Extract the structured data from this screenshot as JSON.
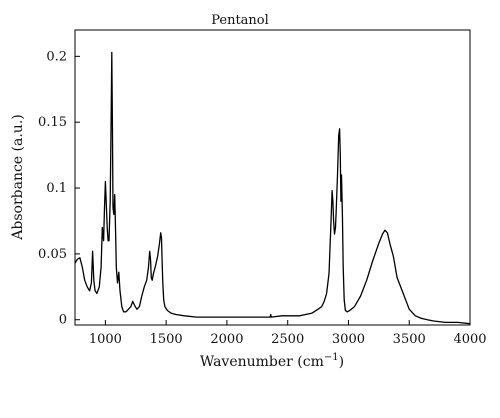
{
  "chart_data": {
    "type": "line",
    "title": "Pentanol",
    "xlabel": "Wavenumber (cm",
    "xlabel_superscript": "−1",
    "xlabel_suffix": ")",
    "ylabel": "Absorbance (a.u.)",
    "xlim": [
      750,
      4000
    ],
    "ylim": [
      -0.004,
      0.22
    ],
    "grid": false,
    "x_ticks": [
      {
        "value": 1000,
        "label": "1000"
      },
      {
        "value": 1500,
        "label": "1500"
      },
      {
        "value": 2000,
        "label": "2000"
      },
      {
        "value": 2500,
        "label": "2500"
      },
      {
        "value": 3000,
        "label": "3000"
      },
      {
        "value": 3500,
        "label": "3500"
      },
      {
        "value": 4000,
        "label": "4000"
      }
    ],
    "y_ticks": [
      {
        "value": 0,
        "label": "0"
      },
      {
        "value": 0.05,
        "label": "0.05"
      },
      {
        "value": 0.1,
        "label": "0.1"
      },
      {
        "value": 0.15,
        "label": "0.15"
      },
      {
        "value": 0.2,
        "label": "0.2"
      }
    ],
    "line_color": "#000000",
    "series": [
      {
        "x": [
          750,
          770,
          790,
          810,
          830,
          850,
          870,
          885,
          895,
          905,
          915,
          930,
          950,
          965,
          975,
          985,
          993,
          1000,
          1007,
          1015,
          1022,
          1030,
          1040,
          1047,
          1053,
          1058,
          1063,
          1070,
          1077,
          1083,
          1090,
          1100,
          1110,
          1120,
          1135,
          1150,
          1170,
          1190,
          1210,
          1225,
          1235,
          1245,
          1260,
          1280,
          1300,
          1320,
          1340,
          1355,
          1365,
          1372,
          1378,
          1385,
          1395,
          1410,
          1430,
          1445,
          1455,
          1462,
          1467,
          1472,
          1480,
          1490,
          1510,
          1540,
          1580,
          1650,
          1750,
          1850,
          2000,
          2150,
          2300,
          2355,
          2360,
          2365,
          2450,
          2600,
          2700,
          2750,
          2780,
          2800,
          2820,
          2840,
          2855,
          2865,
          2872,
          2878,
          2885,
          2893,
          2900,
          2910,
          2920,
          2927,
          2933,
          2938,
          2943,
          2950,
          2957,
          2965,
          2975,
          2990,
          3010,
          3050,
          3100,
          3150,
          3200,
          3250,
          3280,
          3300,
          3320,
          3340,
          3370,
          3400,
          3450,
          3500,
          3550,
          3600,
          3650,
          3700,
          3800,
          3900,
          4000
        ],
        "y": [
          0.043,
          0.046,
          0.047,
          0.04,
          0.03,
          0.025,
          0.022,
          0.028,
          0.052,
          0.03,
          0.022,
          0.02,
          0.025,
          0.04,
          0.07,
          0.06,
          0.085,
          0.105,
          0.09,
          0.07,
          0.06,
          0.06,
          0.09,
          0.15,
          0.203,
          0.15,
          0.085,
          0.08,
          0.095,
          0.07,
          0.04,
          0.028,
          0.036,
          0.022,
          0.01,
          0.006,
          0.006,
          0.008,
          0.01,
          0.014,
          0.012,
          0.01,
          0.008,
          0.01,
          0.018,
          0.025,
          0.03,
          0.04,
          0.052,
          0.045,
          0.032,
          0.03,
          0.035,
          0.04,
          0.048,
          0.058,
          0.066,
          0.062,
          0.045,
          0.028,
          0.015,
          0.01,
          0.007,
          0.005,
          0.004,
          0.003,
          0.002,
          0.002,
          0.002,
          0.002,
          0.002,
          0.002,
          0.004,
          0.002,
          0.003,
          0.003,
          0.005,
          0.008,
          0.01,
          0.014,
          0.02,
          0.035,
          0.07,
          0.098,
          0.09,
          0.075,
          0.065,
          0.07,
          0.085,
          0.11,
          0.14,
          0.145,
          0.125,
          0.09,
          0.11,
          0.08,
          0.04,
          0.015,
          0.007,
          0.006,
          0.007,
          0.01,
          0.018,
          0.03,
          0.045,
          0.058,
          0.065,
          0.068,
          0.066,
          0.058,
          0.048,
          0.032,
          0.02,
          0.008,
          0.003,
          0.001,
          0.0,
          -0.001,
          -0.002,
          -0.002,
          -0.003
        ]
      }
    ]
  }
}
